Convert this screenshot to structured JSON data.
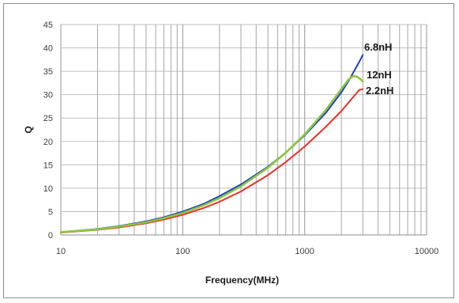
{
  "chart_data": {
    "type": "line",
    "title": "",
    "xlabel": "Frequency(MHz)",
    "ylabel": "Q",
    "xscale": "log",
    "xlim": [
      10,
      10000
    ],
    "ylim": [
      0,
      45
    ],
    "x_ticks": [
      "10",
      "100",
      "1000",
      "10000"
    ],
    "y_ticks": [
      "0",
      "5",
      "10",
      "15",
      "20",
      "25",
      "30",
      "35",
      "40",
      "45"
    ],
    "grid": {
      "x_major": true,
      "x_minor": true,
      "y": true
    },
    "legend": "none",
    "series": [
      {
        "name": "6.8nH",
        "color": "#1f3fbf",
        "x": [
          10,
          20,
          30,
          50,
          70,
          100,
          150,
          200,
          300,
          500,
          700,
          1000,
          1500,
          2000,
          2300,
          2600,
          2800,
          3000
        ],
        "y": [
          0.6,
          1.3,
          1.9,
          2.9,
          3.8,
          5.0,
          6.7,
          8.3,
          10.8,
          14.6,
          17.6,
          21.3,
          26.2,
          30.5,
          33.0,
          35.5,
          37.0,
          38.5
        ]
      },
      {
        "name": "12nH",
        "color": "#8cc63f",
        "x": [
          10,
          20,
          30,
          50,
          70,
          100,
          150,
          200,
          300,
          500,
          700,
          1000,
          1500,
          2000,
          2300,
          2500,
          2700,
          2900,
          3000
        ],
        "y": [
          0.6,
          1.2,
          1.8,
          2.7,
          3.6,
          4.7,
          6.4,
          7.9,
          10.4,
          14.4,
          17.6,
          21.5,
          26.8,
          31.2,
          33.3,
          34.0,
          33.8,
          33.2,
          32.8
        ]
      },
      {
        "name": "2.2nH",
        "color": "#e8312a",
        "x": [
          10,
          20,
          30,
          50,
          70,
          100,
          150,
          200,
          300,
          500,
          700,
          1000,
          1500,
          2000,
          2500,
          2800,
          3000
        ],
        "y": [
          0.5,
          1.1,
          1.6,
          2.5,
          3.3,
          4.3,
          5.8,
          7.1,
          9.3,
          12.8,
          15.6,
          18.9,
          23.2,
          26.5,
          29.5,
          31.0,
          31.2
        ]
      }
    ]
  }
}
